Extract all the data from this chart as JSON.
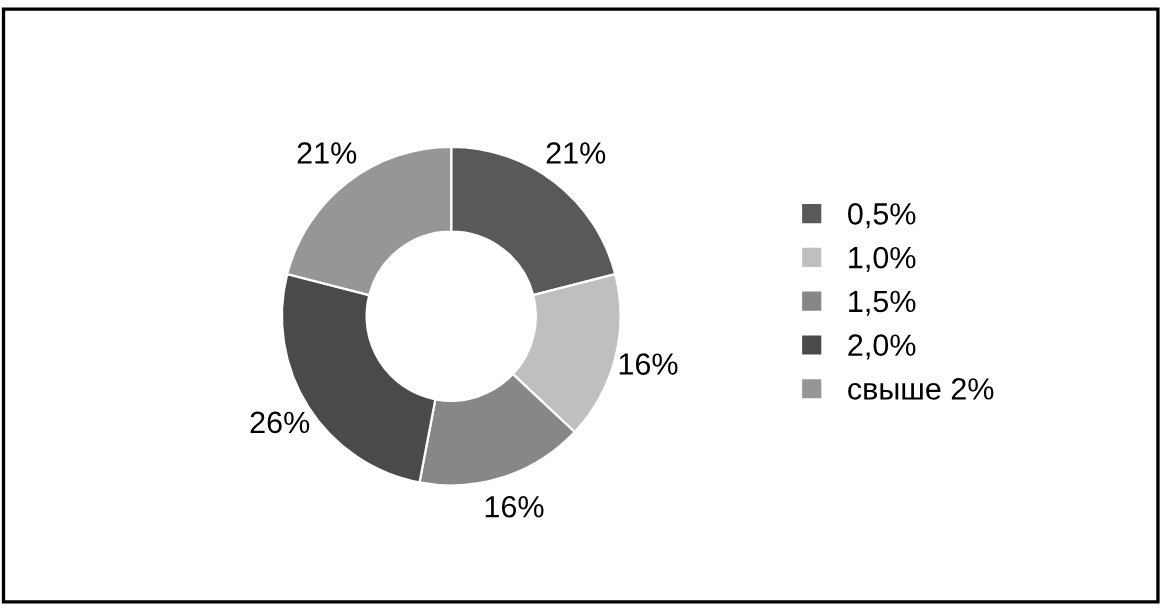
{
  "chart_data": {
    "type": "donut",
    "categories": [
      "0,5%",
      "1,0%",
      "1,5%",
      "2,0%",
      "свыше 2%"
    ],
    "values": [
      21,
      16,
      16,
      26,
      21
    ],
    "value_labels": [
      "21%",
      "16%",
      "16%",
      "26%",
      "21%"
    ],
    "colors": [
      "#595959",
      "#bfbfbf",
      "#878787",
      "#4a4a4a",
      "#969696"
    ],
    "legend": "right"
  }
}
